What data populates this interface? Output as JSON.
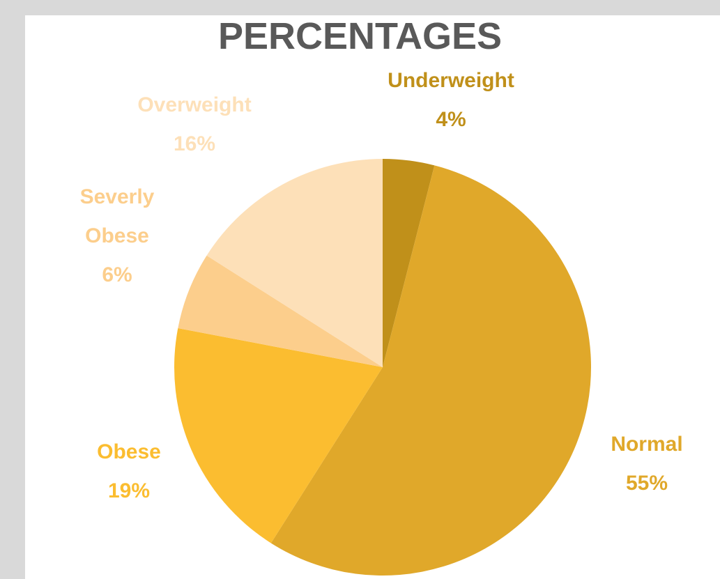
{
  "chart_data": {
    "type": "pie",
    "title": "PERCENTAGES",
    "categories": [
      "Underweight",
      "Normal",
      "Obese",
      "Severly Obese",
      "Overweight"
    ],
    "values": [
      4,
      55,
      19,
      6,
      16
    ],
    "value_labels": [
      "4%",
      "55%",
      "19%",
      "6%",
      "16%"
    ],
    "label_lines": [
      [
        "Underweight"
      ],
      [
        "Normal"
      ],
      [
        "Obese"
      ],
      [
        "Severly",
        "Obese"
      ],
      [
        "Overweight"
      ]
    ],
    "colors": [
      "#c0901a",
      "#e0a82a",
      "#fbbd30",
      "#fcce8c",
      "#fde0b8"
    ],
    "label_colors": [
      "#c0901a",
      "#e0a82a",
      "#fbbd30",
      "#fcce8c",
      "#fde0b8"
    ],
    "start_angle_deg": 0,
    "direction": "clockwise",
    "legend": "none"
  }
}
